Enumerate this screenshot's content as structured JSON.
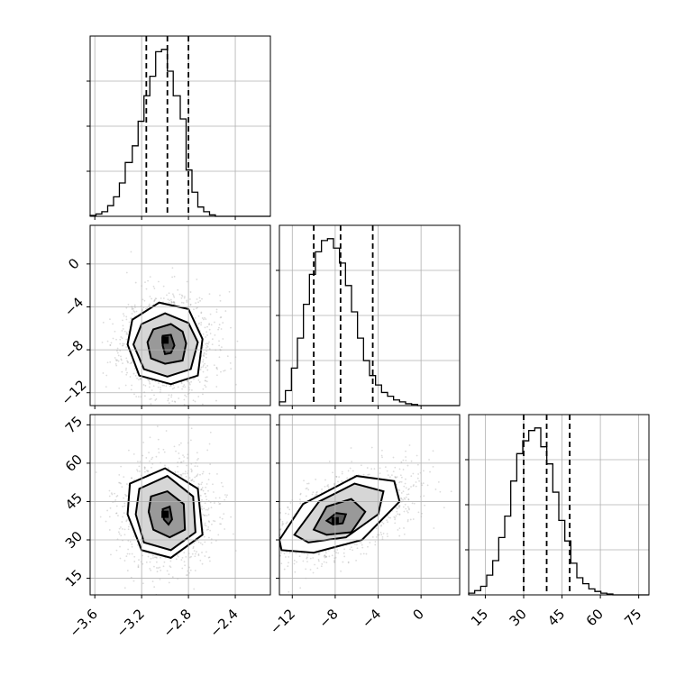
{
  "chart_data": {
    "type": "corner",
    "parameters": [
      {
        "ticks": [
          -3.6,
          -3.2,
          -2.8,
          -2.4
        ],
        "tick_labels": [
          "−3.6",
          "−3.2",
          "−2.8",
          "−2.4"
        ],
        "range": [
          -3.64,
          -2.1
        ],
        "quantiles": [
          -3.16,
          -2.98,
          -2.8
        ],
        "hist_edges": [
          -3.64,
          -3.59,
          -3.54,
          -3.49,
          -3.44,
          -3.39,
          -3.34,
          -3.28,
          -3.23,
          -3.18,
          -3.13,
          -3.08,
          -3.03,
          -2.98,
          -2.93,
          -2.87,
          -2.82,
          -2.77,
          -2.72,
          -2.67,
          -2.62,
          -2.57,
          -2.52,
          -2.46,
          -2.41,
          -2.36,
          -2.31,
          -2.26,
          -2.21,
          -2.16,
          -2.1
        ],
        "hist_values": [
          0.2,
          0.5,
          1.0,
          2.3,
          4.2,
          7.2,
          11.6,
          15.2,
          20.5,
          26.0,
          30.2,
          35.5,
          36.0,
          31.3,
          26.0,
          21.0,
          10.0,
          5.2,
          2.0,
          1.0,
          0.3,
          0.0,
          0.0,
          0.0,
          0.0,
          0.0,
          0.0,
          0.0,
          0.0,
          0.0
        ]
      },
      {
        "ticks": [
          -12,
          -8,
          -4,
          0
        ],
        "tick_labels": [
          "−12",
          "−8",
          "−4",
          "0"
        ],
        "range": [
          -13.2,
          3.6
        ],
        "quantiles": [
          -10.0,
          -7.5,
          -4.5
        ],
        "hist_edges": [
          -13.2,
          -12.64,
          -12.08,
          -11.52,
          -10.96,
          -10.4,
          -9.84,
          -9.28,
          -8.72,
          -8.16,
          -7.6,
          -7.04,
          -6.48,
          -5.92,
          -5.36,
          -4.8,
          -4.24,
          -3.68,
          -3.12,
          -2.56,
          -2.0,
          -1.44,
          -0.88,
          -0.32,
          0.24,
          0.8,
          1.36,
          1.92,
          2.48,
          3.04,
          3.6
        ],
        "hist_values": [
          1.0,
          4.0,
          10.0,
          18.0,
          27.0,
          35.0,
          41.0,
          44.0,
          44.5,
          42.0,
          38.0,
          32.0,
          25.0,
          18.0,
          12.0,
          8.0,
          5.5,
          3.5,
          2.5,
          1.5,
          1.0,
          0.5,
          0.3,
          0.0,
          0.0,
          0.0,
          0.0,
          0.0,
          0.0,
          0.0
        ]
      },
      {
        "ticks": [
          15,
          30,
          45,
          60,
          75
        ],
        "tick_labels": [
          "15",
          "30",
          "45",
          "60",
          "75"
        ],
        "range": [
          8.5,
          79
        ],
        "quantiles": [
          30,
          39,
          48
        ],
        "hist_edges": [
          8.5,
          10.85,
          13.2,
          15.55,
          17.9,
          20.25,
          22.6,
          24.95,
          27.3,
          29.65,
          32.0,
          34.35,
          36.7,
          39.05,
          41.4,
          43.75,
          46.1,
          48.45,
          50.8,
          53.15,
          55.5,
          57.85,
          60.2,
          62.55,
          64.9,
          67.25,
          69.6,
          71.95,
          74.3,
          76.65,
          79.0
        ],
        "hist_values": [
          0.2,
          0.5,
          1.0,
          2.3,
          4.0,
          6.7,
          9.2,
          13.3,
          16.5,
          18.0,
          19.2,
          19.5,
          17.3,
          15.3,
          12.0,
          8.7,
          6.3,
          3.7,
          2.0,
          1.3,
          0.7,
          0.4,
          0.2,
          0.1,
          0.0,
          0.0,
          0.0,
          0.0,
          0.0,
          0.0
        ]
      }
    ],
    "pairs": [
      {
        "x_param": 0,
        "y_param": 1,
        "center": [
          -2.98,
          -7.5
        ],
        "contour_levels": [
          [
            [
              -3.28,
              -5.2
            ],
            [
              -3.05,
              -3.6
            ],
            [
              -2.8,
              -4.2
            ],
            [
              -2.68,
              -7.0
            ],
            [
              -2.72,
              -10.4
            ],
            [
              -2.95,
              -11.2
            ],
            [
              -3.22,
              -10.4
            ],
            [
              -3.32,
              -7.5
            ]
          ],
          [
            [
              -3.2,
              -5.6
            ],
            [
              -3.0,
              -4.6
            ],
            [
              -2.8,
              -5.5
            ],
            [
              -2.72,
              -7.3
            ],
            [
              -2.78,
              -9.8
            ],
            [
              -2.98,
              -10.5
            ],
            [
              -3.18,
              -9.8
            ],
            [
              -3.27,
              -7.5
            ]
          ],
          [
            [
              -3.1,
              -6.1
            ],
            [
              -2.95,
              -5.6
            ],
            [
              -2.85,
              -6.3
            ],
            [
              -2.82,
              -7.4
            ],
            [
              -2.85,
              -9.0
            ],
            [
              -3.0,
              -9.3
            ],
            [
              -3.12,
              -8.8
            ],
            [
              -3.15,
              -7.3
            ]
          ],
          [
            [
              -3.02,
              -6.7
            ],
            [
              -2.95,
              -6.6
            ],
            [
              -2.92,
              -7.6
            ],
            [
              -2.95,
              -8.3
            ],
            [
              -3.0,
              -8.4
            ],
            [
              -3.02,
              -7.6
            ]
          ]
        ],
        "core_point": [
          -3.0,
          -7.1
        ]
      },
      {
        "x_param": 0,
        "y_param": 2,
        "center": [
          -2.98,
          40
        ],
        "contour_levels": [
          [
            [
              -3.3,
              52
            ],
            [
              -3.0,
              58
            ],
            [
              -2.72,
              50
            ],
            [
              -2.68,
              32
            ],
            [
              -2.95,
              23
            ],
            [
              -3.2,
              26
            ],
            [
              -3.32,
              40
            ]
          ],
          [
            [
              -3.22,
              50
            ],
            [
              -2.98,
              55
            ],
            [
              -2.76,
              47
            ],
            [
              -2.74,
              33
            ],
            [
              -2.95,
              26
            ],
            [
              -3.18,
              29
            ],
            [
              -3.25,
              40
            ]
          ],
          [
            [
              -3.12,
              47
            ],
            [
              -2.98,
              49
            ],
            [
              -2.84,
              44
            ],
            [
              -2.83,
              34
            ],
            [
              -2.96,
              31
            ],
            [
              -3.1,
              34
            ],
            [
              -3.14,
              41
            ]
          ],
          [
            [
              -3.02,
              42
            ],
            [
              -2.96,
              43
            ],
            [
              -2.94,
              38
            ],
            [
              -2.97,
              36
            ],
            [
              -3.01,
              38
            ]
          ]
        ],
        "core_point": [
          -3.0,
          40
        ]
      },
      {
        "x_param": 1,
        "y_param": 2,
        "center": [
          -7.5,
          39
        ],
        "contour_levels": [
          [
            [
              -13.2,
              30
            ],
            [
              -11,
              44
            ],
            [
              -6,
              55
            ],
            [
              -2.5,
              53
            ],
            [
              -2.0,
              45
            ],
            [
              -5.5,
              30
            ],
            [
              -10,
              25
            ],
            [
              -13,
              26
            ]
          ],
          [
            [
              -11.8,
              32
            ],
            [
              -9.5,
              45
            ],
            [
              -6.2,
              52
            ],
            [
              -3.5,
              49
            ],
            [
              -4,
              40
            ],
            [
              -7,
              31
            ],
            [
              -10.5,
              29
            ]
          ],
          [
            [
              -10,
              34
            ],
            [
              -8.8,
              43
            ],
            [
              -6.5,
              46
            ],
            [
              -5.2,
              41
            ],
            [
              -6.5,
              33
            ],
            [
              -8.8,
              32
            ]
          ],
          [
            [
              -8.8,
              37.5
            ],
            [
              -7.9,
              40.5
            ],
            [
              -7.0,
              40
            ],
            [
              -7.3,
              36.5
            ],
            [
              -8.2,
              36
            ]
          ]
        ],
        "core_point": [
          -8.0,
          37.5
        ]
      }
    ]
  }
}
